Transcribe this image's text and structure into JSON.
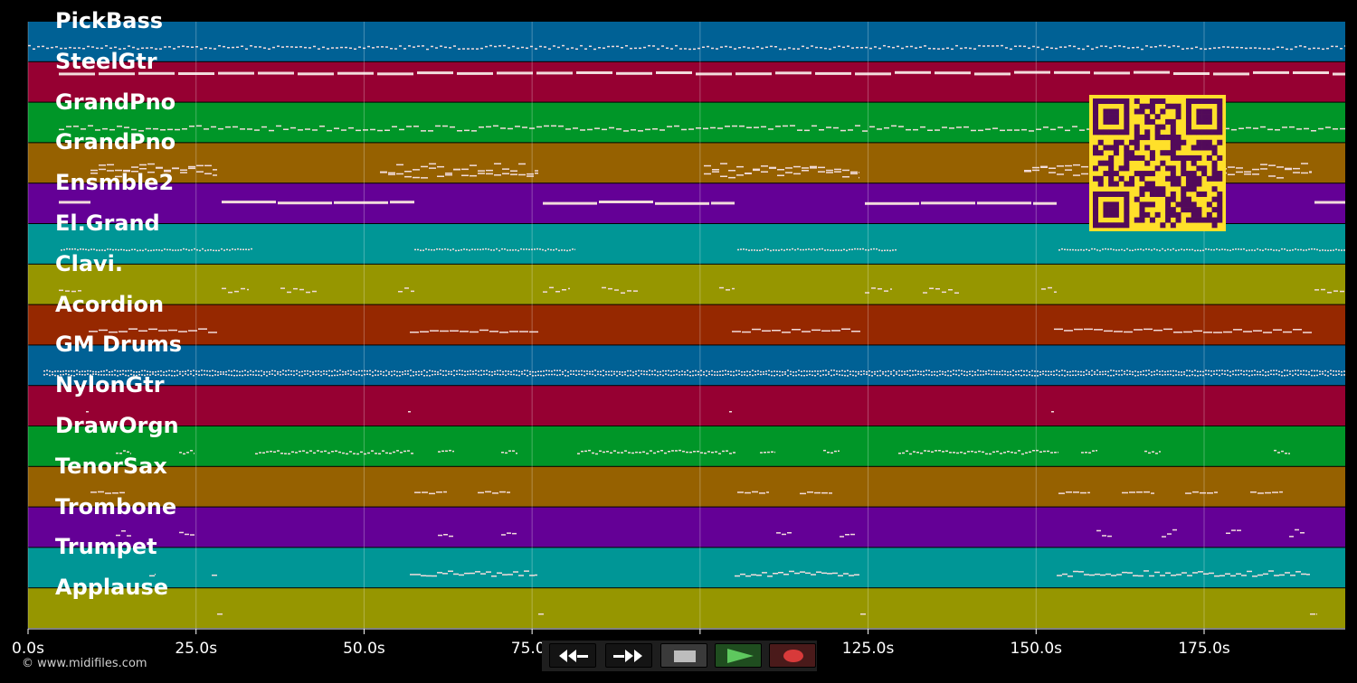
{
  "copyright": "© www.midifiles.com",
  "time_axis": {
    "max_seconds": 196,
    "tick_values": [
      0,
      25,
      50,
      75,
      100,
      125,
      150,
      175
    ],
    "tick_labels": [
      "0.0s",
      "25.0s",
      "50.0s",
      "75.0s",
      "100.0s",
      "125.0s",
      "150.0s",
      "175.0s"
    ]
  },
  "tracks": [
    {
      "name": "PickBass",
      "color": "#006195"
    },
    {
      "name": "SteelGtr",
      "color": "#960032"
    },
    {
      "name": "GrandPno",
      "color": "#009628"
    },
    {
      "name": "GrandPno",
      "color": "#966100"
    },
    {
      "name": "Ensmble2",
      "color": "#640096"
    },
    {
      "name": "El.Grand",
      "color": "#009696"
    },
    {
      "name": "Clavi.",
      "color": "#969600"
    },
    {
      "name": "Acordion",
      "color": "#962800"
    },
    {
      "name": "GM Drums",
      "color": "#006195"
    },
    {
      "name": "NylonGtr",
      "color": "#960032"
    },
    {
      "name": "DrawOrgn",
      "color": "#009628"
    },
    {
      "name": "TenorSax",
      "color": "#966100"
    },
    {
      "name": "Trombone",
      "color": "#640096"
    },
    {
      "name": "Trumpet",
      "color": "#009696"
    },
    {
      "name": "Applause",
      "color": "#969600"
    }
  ],
  "transport": {
    "buttons": [
      {
        "id": "rewind",
        "icon": "rewind-icon",
        "color": "#141414"
      },
      {
        "id": "fast-forward",
        "icon": "fast-forward-icon",
        "color": "#141414"
      },
      {
        "id": "stop",
        "icon": "stop-icon",
        "color": "#3a3a3a"
      },
      {
        "id": "play",
        "icon": "play-icon",
        "color": "#1f4d1f"
      },
      {
        "id": "record",
        "icon": "record-icon",
        "color": "#4a1a1a"
      }
    ]
  },
  "qr_colors": {
    "fg": "#520a5a",
    "bg": "#ffe02a"
  }
}
